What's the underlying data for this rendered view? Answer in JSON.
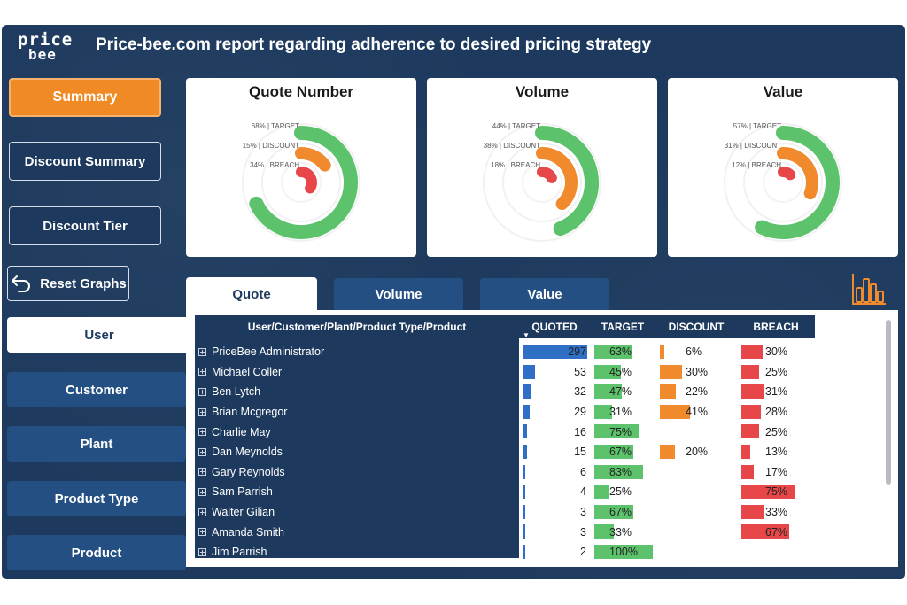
{
  "header": {
    "logo_top": "price",
    "logo_bottom": "bee",
    "title": "Price-bee.com report regarding adherence to desired pricing strategy"
  },
  "nav": {
    "summary": "Summary",
    "discount_summary": "Discount Summary",
    "discount_tier": "Discount Tier",
    "reset": "Reset Graphs"
  },
  "hierarchy": [
    {
      "label": "User",
      "active": true
    },
    {
      "label": "Customer",
      "active": false
    },
    {
      "label": "Plant",
      "active": false
    },
    {
      "label": "Product Type",
      "active": false
    },
    {
      "label": "Product",
      "active": false
    }
  ],
  "gauges": [
    {
      "title": "Quote Number",
      "target": 68,
      "discount": 15,
      "breach": 34,
      "labels": [
        "68% | TARGET",
        "15% | DISCOUNT",
        "34% | BREACH"
      ]
    },
    {
      "title": "Volume",
      "target": 44,
      "discount": 38,
      "breach": 18,
      "labels": [
        "44% | TARGET",
        "38% | DISCOUNT",
        "18% | BREACH"
      ]
    },
    {
      "title": "Value",
      "target": 57,
      "discount": 31,
      "breach": 12,
      "labels": [
        "57% | TARGET",
        "31% | DISCOUNT",
        "12% | BREACH"
      ]
    }
  ],
  "colors": {
    "target": "#5cc26b",
    "discount": "#f08a2c",
    "breach": "#e8474a",
    "quoted": "#2f6fc6",
    "navy": "#1d3a5e"
  },
  "tabs": [
    {
      "label": "Quote",
      "active": true
    },
    {
      "label": "Volume",
      "active": false
    },
    {
      "label": "Value",
      "active": false
    }
  ],
  "table": {
    "headers": {
      "name": "User/Customer/Plant/Product Type/Product",
      "quoted": "QUOTED",
      "target": "TARGET",
      "discount": "DISCOUNT",
      "breach": "BREACH"
    },
    "rows": [
      {
        "name": "PriceBee Administrator",
        "quoted": 297,
        "target": "63%",
        "discount": "6%",
        "breach": "30%"
      },
      {
        "name": "Michael Coller",
        "quoted": 53,
        "target": "45%",
        "discount": "30%",
        "breach": "25%"
      },
      {
        "name": "Ben Lytch",
        "quoted": 32,
        "target": "47%",
        "discount": "22%",
        "breach": "31%"
      },
      {
        "name": "Brian Mcgregor",
        "quoted": 29,
        "target": "31%",
        "discount": "41%",
        "breach": "28%"
      },
      {
        "name": "Charlie May",
        "quoted": 16,
        "target": "75%",
        "discount": "",
        "breach": "25%"
      },
      {
        "name": "Dan Meynolds",
        "quoted": 15,
        "target": "67%",
        "discount": "20%",
        "breach": "13%"
      },
      {
        "name": "Gary Reynolds",
        "quoted": 6,
        "target": "83%",
        "discount": "",
        "breach": "17%"
      },
      {
        "name": "Sam Parrish",
        "quoted": 4,
        "target": "25%",
        "discount": "",
        "breach": "75%"
      },
      {
        "name": "Walter Gilian",
        "quoted": 3,
        "target": "67%",
        "discount": "",
        "breach": "33%"
      },
      {
        "name": "Amanda Smith",
        "quoted": 3,
        "target": "33%",
        "discount": "",
        "breach": "67%"
      },
      {
        "name": "Jim Parrish",
        "quoted": 2,
        "target": "100%",
        "discount": "",
        "breach": ""
      }
    ]
  }
}
